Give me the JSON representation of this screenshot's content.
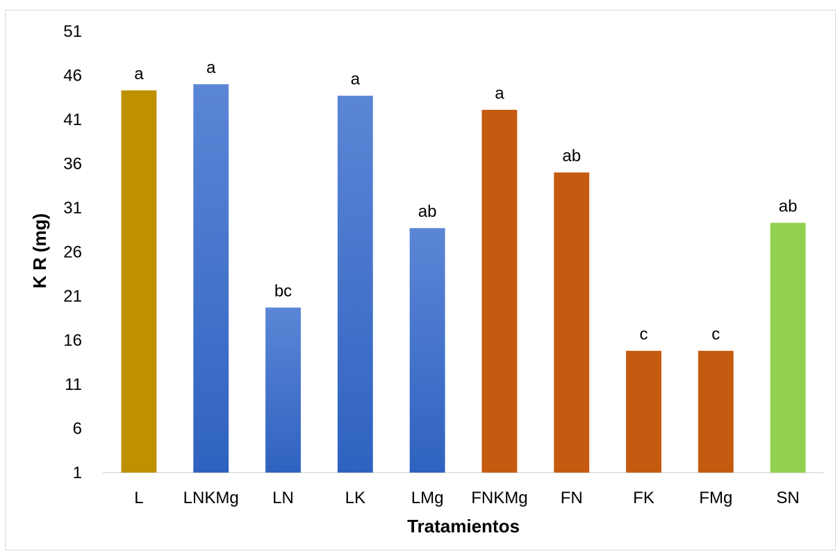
{
  "chart_data": {
    "type": "bar",
    "xlabel": "Tratamientos",
    "ylabel": "K R (mg)",
    "ylim": [
      1,
      51
    ],
    "yticks": [
      1,
      6,
      11,
      16,
      21,
      26,
      31,
      36,
      41,
      46,
      51
    ],
    "grid": false,
    "categories": [
      "L",
      "LNKMg",
      "LN",
      "LK",
      "LMg",
      "FNKMg",
      "FN",
      "FK",
      "FMg",
      "SN"
    ],
    "values": [
      44.3,
      45.0,
      19.7,
      43.7,
      28.7,
      42.1,
      35.0,
      14.8,
      14.8,
      29.3
    ],
    "labels": [
      "a",
      "a",
      "bc",
      "a",
      "ab",
      "a",
      "ab",
      "c",
      "c",
      "ab"
    ],
    "colors": [
      "#bf9000",
      "#4472c4",
      "#4472c4",
      "#4472c4",
      "#4472c4",
      "#c55a11",
      "#c55a11",
      "#c55a11",
      "#c55a11",
      "#92d050"
    ]
  }
}
